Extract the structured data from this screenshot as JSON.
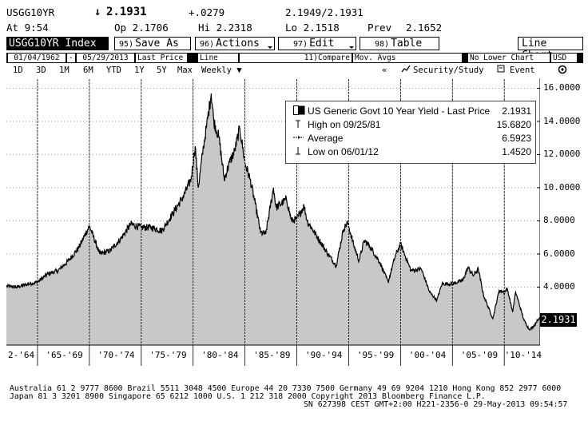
{
  "quote": {
    "ticker": "USGG10YR",
    "last_arrow": "↓",
    "last": "2.1931",
    "change": "+.0279",
    "bid_ask": "2.1949/2.1931",
    "time_label": "At 9:54",
    "open": "Op 2.1706",
    "high": "Hi 2.2318",
    "low": "Lo 2.1518",
    "prev_label": "Prev",
    "prev": "2.1652"
  },
  "toolbar": {
    "index_label": "USGG10YR Index",
    "save_num": "95)",
    "save_label": "Save As",
    "actions_num": "96)",
    "actions_label": "Actions",
    "edit_num": "97)",
    "edit_label": "Edit",
    "table_num": "98)",
    "table_label": "Table",
    "chart_type": "Line Chart"
  },
  "settings": {
    "start_date": "01/04/1962",
    "dash": "-",
    "end_date": "05/29/2013",
    "price_field": "Last Price",
    "line_type": "Line",
    "compare": "11)Compare",
    "mov_avgs": "Mov. Avgs",
    "lower_chart": "No Lower Chart",
    "currency": "USD"
  },
  "periods": {
    "items": [
      "1D",
      "3D",
      "1M",
      "6M",
      "YTD",
      "1Y",
      "5Y",
      "Max"
    ],
    "frequency": "Weekly ▼",
    "collapse": "«",
    "security_study": "Security/Study",
    "event": "Event"
  },
  "legend": {
    "title": "US Generic Govt 10 Year Yield - Last Price",
    "title_value": "2.1931",
    "high_label": "High on 09/25/81",
    "high_value": "15.6820",
    "avg_label": "Average",
    "avg_value": "6.5923",
    "low_label": "Low on 06/01/12",
    "low_value": "1.4520"
  },
  "last_badge": "2.1931",
  "footer": {
    "line1": "Australia 61 2 9777 8600 Brazil 5511 3048 4500 Europe 44 20 7330 7500 Germany 49 69 9204 1210 Hong Kong 852 2977 6000",
    "line2": "Japan 81 3 3201 8900         Singapore 65 6212 1000          U.S. 1 212 318 2000          Copyright 2013 Bloomberg Finance L.P.",
    "line3": "SN 627398 CEST GMT+2:00 H221-2356-0 29-May-2013 09:54:57"
  },
  "colors": {
    "fill": "#c8c8c8",
    "line": "#000000",
    "grid": "#9a9a9a"
  },
  "chart_data": {
    "type": "area",
    "title": "US Generic Govt 10 Year Yield - Last Price",
    "xlabel": "",
    "ylabel": "",
    "x_tick_labels": [
      "2-'64",
      "'65-'69",
      "'70-'74",
      "'75-'79",
      "'80-'84",
      "'85-'89",
      "'90-'94",
      "'95-'99",
      "'00-'04",
      "'05-'09",
      "'10-'14"
    ],
    "y_tick_labels": [
      "4.0000",
      "6.0000",
      "8.0000",
      "10.0000",
      "12.0000",
      "14.0000",
      "16.0000"
    ],
    "y_ticks": [
      4,
      6,
      8,
      10,
      12,
      14,
      16
    ],
    "ylim": [
      0.5,
      16.6
    ],
    "xlim": [
      1962.0,
      2013.45
    ],
    "x_periods": [
      1962,
      1965,
      1970,
      1975,
      1980,
      1985,
      1990,
      1995,
      2000,
      2005,
      2010,
      2015
    ],
    "grid": true,
    "legend_position": "top-right",
    "series": [
      {
        "name": "US Generic Govt 10 Year Yield - Last Price",
        "points": [
          [
            1962.0,
            4.05
          ],
          [
            1963.0,
            4.0
          ],
          [
            1964.0,
            4.17
          ],
          [
            1965.0,
            4.3
          ],
          [
            1966.0,
            4.8
          ],
          [
            1967.0,
            5.0
          ],
          [
            1968.0,
            5.6
          ],
          [
            1969.0,
            6.4
          ],
          [
            1970.0,
            7.7
          ],
          [
            1971.0,
            6.0
          ],
          [
            1972.0,
            6.2
          ],
          [
            1973.0,
            6.9
          ],
          [
            1974.0,
            7.8
          ],
          [
            1975.0,
            7.6
          ],
          [
            1976.0,
            7.6
          ],
          [
            1977.0,
            7.4
          ],
          [
            1978.0,
            8.4
          ],
          [
            1979.0,
            9.4
          ],
          [
            1979.8,
            10.5
          ],
          [
            1980.2,
            12.5
          ],
          [
            1980.5,
            10.0
          ],
          [
            1981.0,
            12.5
          ],
          [
            1981.3,
            13.7
          ],
          [
            1981.75,
            15.68
          ],
          [
            1982.0,
            14.0
          ],
          [
            1982.5,
            13.0
          ],
          [
            1983.0,
            10.5
          ],
          [
            1983.5,
            11.5
          ],
          [
            1984.0,
            12.2
          ],
          [
            1984.5,
            13.6
          ],
          [
            1985.0,
            11.5
          ],
          [
            1985.5,
            10.5
          ],
          [
            1986.0,
            9.0
          ],
          [
            1986.5,
            7.3
          ],
          [
            1987.0,
            7.2
          ],
          [
            1987.75,
            10.0
          ],
          [
            1988.0,
            8.8
          ],
          [
            1989.0,
            9.3
          ],
          [
            1989.5,
            8.0
          ],
          [
            1990.0,
            8.1
          ],
          [
            1990.7,
            8.9
          ],
          [
            1991.0,
            8.0
          ],
          [
            1992.0,
            7.0
          ],
          [
            1993.0,
            6.0
          ],
          [
            1993.8,
            5.3
          ],
          [
            1994.5,
            7.5
          ],
          [
            1994.9,
            7.9
          ],
          [
            1995.5,
            6.5
          ],
          [
            1996.0,
            5.6
          ],
          [
            1996.5,
            6.8
          ],
          [
            1997.0,
            6.5
          ],
          [
            1998.0,
            5.5
          ],
          [
            1998.8,
            4.3
          ],
          [
            1999.5,
            5.9
          ],
          [
            2000.0,
            6.6
          ],
          [
            2001.0,
            5.0
          ],
          [
            2002.0,
            5.1
          ],
          [
            2002.8,
            3.7
          ],
          [
            2003.5,
            3.2
          ],
          [
            2004.0,
            4.2
          ],
          [
            2005.0,
            4.2
          ],
          [
            2006.0,
            4.4
          ],
          [
            2006.5,
            5.2
          ],
          [
            2007.0,
            4.7
          ],
          [
            2007.5,
            5.1
          ],
          [
            2008.0,
            3.5
          ],
          [
            2008.9,
            2.1
          ],
          [
            2009.5,
            3.8
          ],
          [
            2010.0,
            3.7
          ],
          [
            2010.3,
            3.9
          ],
          [
            2010.8,
            2.5
          ],
          [
            2011.1,
            3.7
          ],
          [
            2011.9,
            2.0
          ],
          [
            2012.4,
            1.45
          ],
          [
            2012.8,
            1.6
          ],
          [
            2013.2,
            2.0
          ],
          [
            2013.41,
            2.19
          ]
        ]
      }
    ]
  }
}
